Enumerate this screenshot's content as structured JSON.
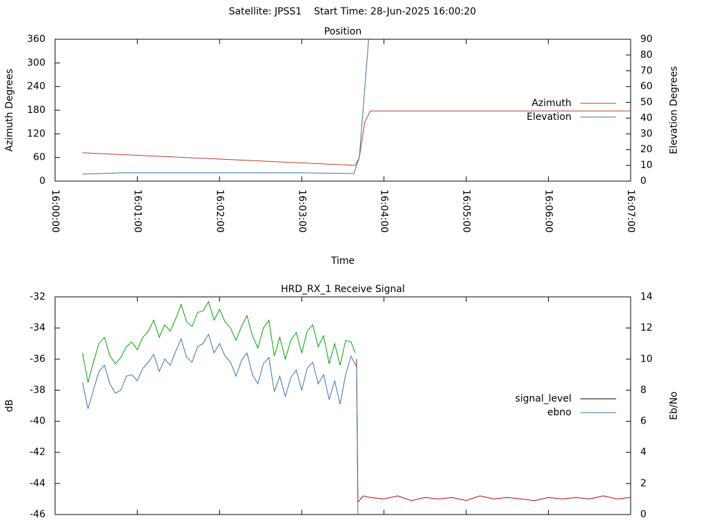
{
  "chart_data": [
    {
      "type": "line",
      "suptitle": "Satellite: JPSS1    Start Time: 28-Jun-2025 16:00:20",
      "title": "Position",
      "xlabel": "Time",
      "ylabel": "Azimuth Degrees",
      "y2label": "Elevation Degrees",
      "xlim": [
        "16:00:00",
        "16:07:00"
      ],
      "xticks": [
        "16:00:00",
        "16:01:00",
        "16:02:00",
        "16:03:00",
        "16:04:00",
        "16:05:00",
        "16:06:00",
        "16:07:00"
      ],
      "ylim": [
        0,
        360
      ],
      "yticks": [
        0,
        60,
        120,
        180,
        240,
        300,
        360
      ],
      "y2lim": [
        0,
        90
      ],
      "y2ticks": [
        0,
        10,
        20,
        30,
        40,
        50,
        60,
        70,
        80,
        90
      ],
      "legend": "right",
      "series": [
        {
          "name": "Azimuth",
          "color": "#c0392b",
          "x": [
            "16:00:20",
            "16:03:39",
            "16:03:42",
            "16:03:46",
            "16:03:50",
            "16:07:00"
          ],
          "values": [
            72,
            40,
            60,
            150,
            178,
            178
          ]
        },
        {
          "name": "Elevation",
          "color": "#3a6fb0",
          "axis": "y2",
          "x": [
            "16:00:20",
            "16:00:50",
            "16:03:00",
            "16:03:38",
            "16:03:42",
            "16:03:49"
          ],
          "values": [
            4.5,
            5.3,
            5.3,
            4.8,
            15,
            92
          ]
        }
      ]
    },
    {
      "type": "line",
      "title": "HRD_RX_1 Receive Signal",
      "ylabel": "dB",
      "y2label": "Eb/No",
      "xlim": [
        "16:00:00",
        "16:07:00"
      ],
      "xticks": [
        "16:00:00",
        "16:01:00",
        "16:02:00",
        "16:03:00",
        "16:04:00",
        "16:05:00",
        "16:06:00",
        "16:07:00"
      ],
      "xtick_labels": false,
      "ylim": [
        -46,
        -32
      ],
      "yticks": [
        -46,
        -44,
        -42,
        -40,
        -38,
        -36,
        -34,
        -32
      ],
      "y2lim": [
        0,
        14
      ],
      "y2ticks": [
        0,
        2,
        4,
        6,
        8,
        10,
        12,
        14
      ],
      "legend": "right",
      "series": [
        {
          "name": "signal_level",
          "color": "#000000",
          "line_color": "#00a000",
          "split_x": "16:03:39",
          "after_color": "#c00000",
          "x": [
            "16:00:20",
            "16:00:24",
            "16:00:28",
            "16:00:32",
            "16:00:36",
            "16:00:40",
            "16:00:44",
            "16:00:48",
            "16:00:52",
            "16:00:56",
            "16:01:00",
            "16:01:04",
            "16:01:08",
            "16:01:12",
            "16:01:16",
            "16:01:20",
            "16:01:24",
            "16:01:28",
            "16:01:32",
            "16:01:36",
            "16:01:40",
            "16:01:44",
            "16:01:48",
            "16:01:52",
            "16:01:56",
            "16:02:00",
            "16:02:04",
            "16:02:08",
            "16:02:12",
            "16:02:16",
            "16:02:20",
            "16:02:24",
            "16:02:28",
            "16:02:32",
            "16:02:36",
            "16:02:40",
            "16:02:44",
            "16:02:48",
            "16:02:52",
            "16:02:56",
            "16:03:00",
            "16:03:04",
            "16:03:08",
            "16:03:12",
            "16:03:16",
            "16:03:20",
            "16:03:24",
            "16:03:28",
            "16:03:32",
            "16:03:36",
            "16:03:39",
            "16:03:40",
            "16:03:41",
            "16:03:45",
            "16:03:50",
            "16:04:00",
            "16:04:10",
            "16:04:20",
            "16:04:30",
            "16:04:40",
            "16:04:50",
            "16:05:00",
            "16:05:10",
            "16:05:20",
            "16:05:30",
            "16:05:40",
            "16:05:50",
            "16:06:00",
            "16:06:10",
            "16:06:20",
            "16:06:30",
            "16:06:40",
            "16:06:50",
            "16:07:00"
          ],
          "values": [
            -35.6,
            -37.5,
            -36.2,
            -35.0,
            -34.6,
            -35.8,
            -36.3,
            -35.9,
            -35.2,
            -34.9,
            -35.4,
            -34.6,
            -34.2,
            -33.5,
            -34.6,
            -33.8,
            -34.2,
            -33.4,
            -32.5,
            -33.6,
            -33.9,
            -33.0,
            -32.9,
            -32.3,
            -33.5,
            -32.8,
            -33.6,
            -34.0,
            -34.8,
            -33.9,
            -33.2,
            -34.5,
            -35.3,
            -34.0,
            -33.5,
            -35.8,
            -34.6,
            -36.0,
            -34.8,
            -34.3,
            -35.6,
            -34.2,
            -33.8,
            -35.2,
            -34.5,
            -36.3,
            -35.0,
            -36.4,
            -34.8,
            -34.9,
            -35.6,
            -36.0,
            -45.2,
            -44.8,
            -44.9,
            -45.0,
            -44.8,
            -45.1,
            -44.9,
            -45.0,
            -44.9,
            -45.1,
            -44.8,
            -45.0,
            -44.9,
            -45.0,
            -45.1,
            -44.9,
            -45.0,
            -44.9,
            -45.0,
            -44.8,
            -45.0,
            -44.9
          ]
        },
        {
          "name": "ebno",
          "color": "#3a6fb0",
          "axis": "y2",
          "x": [
            "16:00:20",
            "16:00:24",
            "16:00:28",
            "16:00:32",
            "16:00:36",
            "16:00:40",
            "16:00:44",
            "16:00:48",
            "16:00:52",
            "16:00:56",
            "16:01:00",
            "16:01:04",
            "16:01:08",
            "16:01:12",
            "16:01:16",
            "16:01:20",
            "16:01:24",
            "16:01:28",
            "16:01:32",
            "16:01:36",
            "16:01:40",
            "16:01:44",
            "16:01:48",
            "16:01:52",
            "16:01:56",
            "16:02:00",
            "16:02:04",
            "16:02:08",
            "16:02:12",
            "16:02:16",
            "16:02:20",
            "16:02:24",
            "16:02:28",
            "16:02:32",
            "16:02:36",
            "16:02:40",
            "16:02:44",
            "16:02:48",
            "16:02:52",
            "16:02:56",
            "16:03:00",
            "16:03:04",
            "16:03:08",
            "16:03:12",
            "16:03:16",
            "16:03:20",
            "16:03:24",
            "16:03:28",
            "16:03:32",
            "16:03:36",
            "16:03:40",
            "16:03:41"
          ],
          "values": [
            8.5,
            6.8,
            8.0,
            9.2,
            9.6,
            8.4,
            7.8,
            8.0,
            8.9,
            9.0,
            8.6,
            9.4,
            9.8,
            10.3,
            9.2,
            10.0,
            9.6,
            10.5,
            11.3,
            10.1,
            9.8,
            10.8,
            11.0,
            11.6,
            10.4,
            11.0,
            10.2,
            9.8,
            8.9,
            9.9,
            10.4,
            9.0,
            8.4,
            9.7,
            10.1,
            7.9,
            8.9,
            7.6,
            8.8,
            9.3,
            8.0,
            9.4,
            9.8,
            8.4,
            9.0,
            7.4,
            8.6,
            7.1,
            9.0,
            10.2,
            9.5,
            0
          ]
        }
      ]
    }
  ]
}
